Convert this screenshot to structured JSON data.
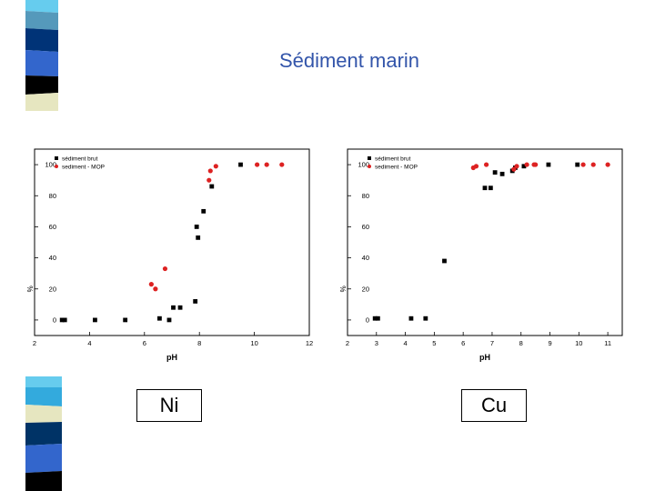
{
  "slide": {
    "title": "Sédiment marin"
  },
  "deco_colors": [
    "#66ccee",
    "#5599bb",
    "#003377",
    "#3366cc",
    "#000000",
    "#e6e6c0",
    "#33aadd",
    "#e6e6c0",
    "#003366",
    "#3366cc"
  ],
  "labels": {
    "ni": "Ni",
    "cu": "Cu"
  },
  "chart_data": [
    {
      "type": "scatter",
      "title": "",
      "xlabel": "pH",
      "ylabel": "%",
      "xlim": [
        2,
        12
      ],
      "ylim": [
        -10,
        110
      ],
      "xticks": [
        2,
        4,
        6,
        8,
        10,
        12
      ],
      "yticks": [
        0,
        20,
        40,
        60,
        80,
        100
      ],
      "legend": "top-left",
      "grid": false,
      "series": [
        {
          "name": "sédiment brut",
          "color": "#000000",
          "marker": "square",
          "points": [
            {
              "x": 3.0,
              "y": 0
            },
            {
              "x": 3.1,
              "y": 0
            },
            {
              "x": 4.2,
              "y": 0
            },
            {
              "x": 5.3,
              "y": 0
            },
            {
              "x": 6.55,
              "y": 1
            },
            {
              "x": 6.9,
              "y": 0
            },
            {
              "x": 7.05,
              "y": 8
            },
            {
              "x": 7.3,
              "y": 8
            },
            {
              "x": 7.85,
              "y": 12
            },
            {
              "x": 7.9,
              "y": 60
            },
            {
              "x": 7.95,
              "y": 53
            },
            {
              "x": 8.15,
              "y": 70
            },
            {
              "x": 8.45,
              "y": 86
            },
            {
              "x": 9.5,
              "y": 100
            }
          ]
        },
        {
          "name": "sediment - MOP",
          "color": "#dd2222",
          "marker": "circle",
          "points": [
            {
              "x": 6.25,
              "y": 23
            },
            {
              "x": 6.4,
              "y": 20
            },
            {
              "x": 6.75,
              "y": 33
            },
            {
              "x": 8.35,
              "y": 90
            },
            {
              "x": 8.4,
              "y": 96
            },
            {
              "x": 8.6,
              "y": 99
            },
            {
              "x": 10.1,
              "y": 100
            },
            {
              "x": 10.45,
              "y": 100
            },
            {
              "x": 11.0,
              "y": 100
            }
          ]
        }
      ]
    },
    {
      "type": "scatter",
      "title": "",
      "xlabel": "pH",
      "ylabel": "%",
      "xlim": [
        2,
        11.5
      ],
      "ylim": [
        -10,
        110
      ],
      "xticks": [
        2,
        3,
        4,
        5,
        6,
        7,
        8,
        9,
        10,
        11
      ],
      "yticks": [
        0,
        20,
        40,
        60,
        80,
        100
      ],
      "legend": "top-left",
      "grid": false,
      "series": [
        {
          "name": "sédiment brut",
          "color": "#000000",
          "marker": "square",
          "points": [
            {
              "x": 2.95,
              "y": 1
            },
            {
              "x": 3.05,
              "y": 1
            },
            {
              "x": 4.2,
              "y": 1
            },
            {
              "x": 4.7,
              "y": 1
            },
            {
              "x": 5.35,
              "y": 38
            },
            {
              "x": 6.75,
              "y": 85
            },
            {
              "x": 6.95,
              "y": 85
            },
            {
              "x": 7.1,
              "y": 95
            },
            {
              "x": 7.35,
              "y": 94
            },
            {
              "x": 7.7,
              "y": 96
            },
            {
              "x": 7.8,
              "y": 98
            },
            {
              "x": 8.1,
              "y": 99
            },
            {
              "x": 8.95,
              "y": 100
            },
            {
              "x": 9.95,
              "y": 100
            }
          ]
        },
        {
          "name": "sediment - MOP",
          "color": "#dd2222",
          "marker": "circle",
          "points": [
            {
              "x": 6.35,
              "y": 98
            },
            {
              "x": 6.45,
              "y": 99
            },
            {
              "x": 6.8,
              "y": 100
            },
            {
              "x": 7.75,
              "y": 97
            },
            {
              "x": 7.85,
              "y": 99
            },
            {
              "x": 8.2,
              "y": 100
            },
            {
              "x": 8.45,
              "y": 100
            },
            {
              "x": 8.5,
              "y": 100
            },
            {
              "x": 10.15,
              "y": 100
            },
            {
              "x": 10.5,
              "y": 100
            },
            {
              "x": 11.0,
              "y": 100
            }
          ]
        }
      ]
    }
  ]
}
